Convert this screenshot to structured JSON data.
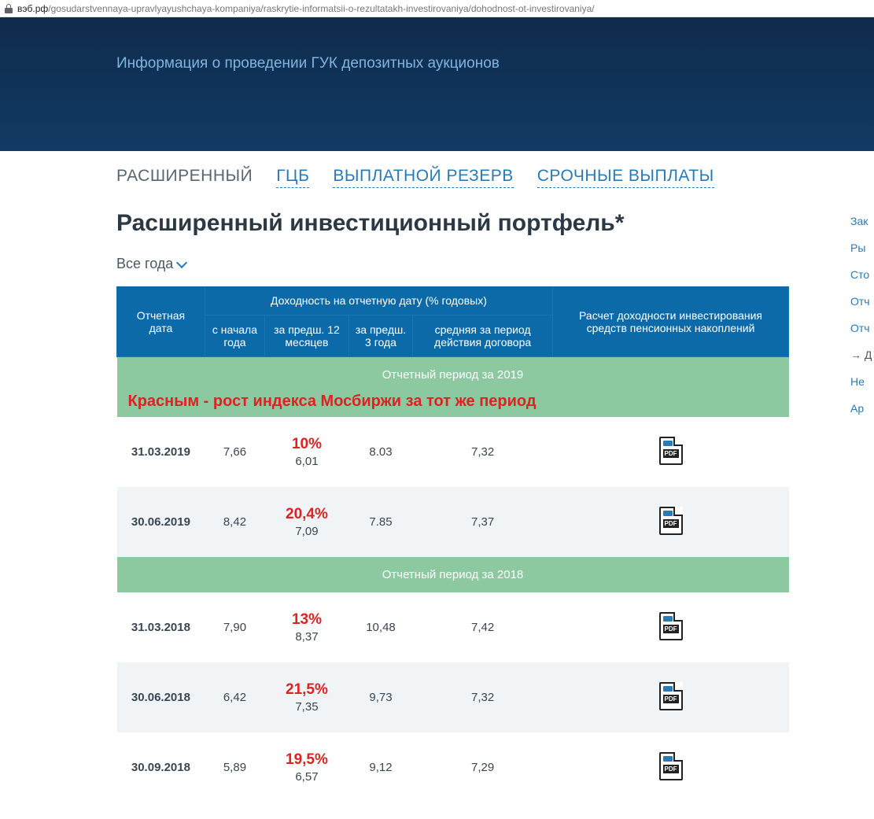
{
  "url": {
    "domain": "вэб.рф",
    "path": "/gosudarstvennaya-upravlyayushchaya-kompaniya/raskrytie-informatsii-o-rezultatakh-investirovaniya/dohodnost-ot-investirovaniya/"
  },
  "hero": {
    "title": "Информация о проведении ГУК депозитных аукционов"
  },
  "tabs": [
    {
      "label": "РАСШИРЕННЫЙ",
      "active": true
    },
    {
      "label": "ГЦБ",
      "active": false
    },
    {
      "label": "ВЫПЛАТНОЙ РЕЗЕРВ",
      "active": false
    },
    {
      "label": "СРОЧНЫЕ ВЫПЛАТЫ",
      "active": false
    }
  ],
  "page_title": "Расширенный инвестиционный портфель*",
  "year_filter": "Все года",
  "table": {
    "head": {
      "col_date": "Отчетная дата",
      "group_yield": "Доходность на отчетную дату (% годовых)",
      "col_ytd": "с начала года",
      "col_12m": "за предш. 12 месяцев",
      "col_3y": "за предш. 3 года",
      "col_avg": "средняя за период действия договора",
      "col_calc": "Расчет доходности инвестирования средств пенсионных накоплений"
    },
    "annotation": "Красным - рост индекса Мосбиржи за тот же период",
    "periods": [
      {
        "title": "Отчетный период за 2019",
        "show_annotation": true,
        "rows": [
          {
            "date": "31.03.2019",
            "ytd": "7,66",
            "m12": "6,01",
            "y3": "8.03",
            "avg": "7,32",
            "red": "10%"
          },
          {
            "date": "30.06.2019",
            "ytd": "8,42",
            "m12": "7,09",
            "y3": "7.85",
            "avg": "7,37",
            "red": "20,4%"
          }
        ]
      },
      {
        "title": "Отчетный период за 2018",
        "show_annotation": false,
        "rows": [
          {
            "date": "31.03.2018",
            "ytd": "7,90",
            "m12": "8,37",
            "y3": "10,48",
            "avg": "7,42",
            "red": "13%"
          },
          {
            "date": "30.06.2018",
            "ytd": "6,42",
            "m12": "7,35",
            "y3": "9,73",
            "avg": "7,32",
            "red": "21,5%"
          },
          {
            "date": "30.09.2018",
            "ytd": "5,89",
            "m12": "6,57",
            "y3": "9,12",
            "avg": "7,29",
            "red": "19,5%"
          }
        ]
      }
    ]
  },
  "sidenav": [
    {
      "label": "Зак",
      "active": false
    },
    {
      "label": "Ры",
      "active": false
    },
    {
      "label": "Сто",
      "active": false
    },
    {
      "label": "Отч",
      "active": false
    },
    {
      "label": "Отч",
      "active": false
    },
    {
      "label": "→ Д",
      "active": true
    },
    {
      "label": "Не",
      "active": false
    },
    {
      "label": "Ар",
      "active": false
    }
  ],
  "colors": {
    "header_bg": "#0d6aa9",
    "period_bg": "#8cc9a1",
    "even_row": "#f0f4f6",
    "link": "#2a7ab6",
    "red": "#d22"
  }
}
